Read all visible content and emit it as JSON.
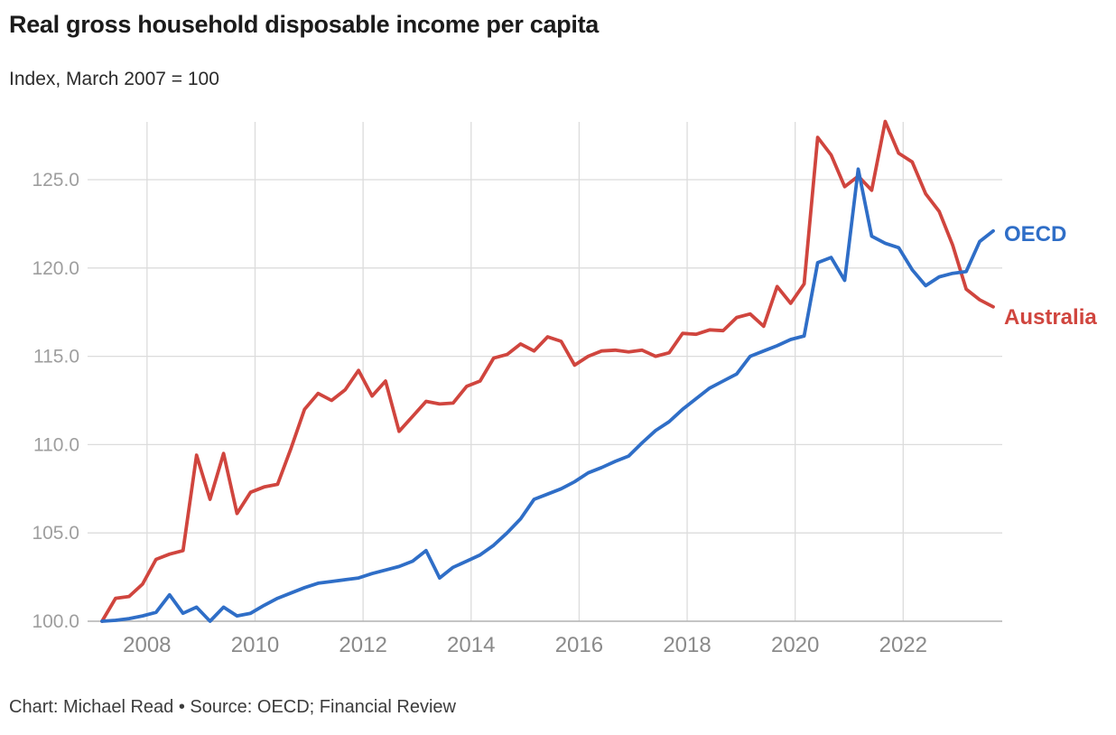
{
  "header": {
    "title": "Real gross household disposable income per capita",
    "subtitle": "Index, March 2007 = 100"
  },
  "footer": {
    "credit": "Chart: Michael Read • Source: OECD; Financial Review"
  },
  "colors": {
    "australia": "#D0453E",
    "oecd": "#2F6EC7",
    "gridline": "#DCDCDC",
    "baseline": "#B2B2B2",
    "y_tick_text": "#9E9E9E",
    "x_tick_text": "#8A8A8A",
    "title_text": "#1B1B1B",
    "credit_text": "#3C3C3C",
    "background": "#FFFFFF"
  },
  "chart_data": {
    "type": "line",
    "title": "Real gross household disposable income per capita",
    "subtitle": "Index, March 2007 = 100",
    "frequency": "quarterly",
    "x_start": "2007-Q1",
    "x_end": "2023-Q3",
    "x_tick_years": [
      2008,
      2010,
      2012,
      2014,
      2016,
      2018,
      2020,
      2022
    ],
    "y_tick_labels": [
      "100.0",
      "105.0",
      "110.0",
      "115.0",
      "120.0",
      "125.0"
    ],
    "ylim": [
      100,
      128.4
    ],
    "grid": true,
    "legend_position": "right-of-line-ends",
    "series": [
      {
        "name": "Australia",
        "label": "Australia",
        "color": "#D0453E",
        "values": [
          100.0,
          101.3,
          101.4,
          102.1,
          103.5,
          103.8,
          104.0,
          109.4,
          106.9,
          109.5,
          106.1,
          107.3,
          107.6,
          107.75,
          109.8,
          112.0,
          112.9,
          112.5,
          113.1,
          114.2,
          112.75,
          113.6,
          110.75,
          111.6,
          112.45,
          112.3,
          112.35,
          113.3,
          113.6,
          114.9,
          115.1,
          115.7,
          115.3,
          116.1,
          115.85,
          114.5,
          115.0,
          115.3,
          115.35,
          115.25,
          115.35,
          115.0,
          115.2,
          116.3,
          116.25,
          116.5,
          116.45,
          117.2,
          117.4,
          116.7,
          118.95,
          118.0,
          119.1,
          127.4,
          126.4,
          124.6,
          125.2,
          124.4,
          128.3,
          126.5,
          126.0,
          124.2,
          123.2,
          121.3,
          118.8,
          118.2,
          117.8
        ]
      },
      {
        "name": "OECD",
        "label": "OECD",
        "color": "#2F6EC7",
        "values": [
          100.0,
          100.05,
          100.15,
          100.3,
          100.5,
          101.5,
          100.45,
          100.8,
          100.0,
          100.8,
          100.3,
          100.45,
          100.9,
          101.3,
          101.6,
          101.9,
          102.15,
          102.25,
          102.35,
          102.45,
          102.7,
          102.9,
          103.1,
          103.4,
          104.0,
          102.45,
          103.05,
          103.4,
          103.75,
          104.3,
          105.0,
          105.8,
          106.9,
          107.2,
          107.5,
          107.9,
          108.4,
          108.7,
          109.05,
          109.35,
          110.1,
          110.8,
          111.3,
          112.0,
          112.6,
          113.2,
          113.6,
          114.0,
          115.0,
          115.3,
          115.6,
          115.95,
          116.15,
          120.3,
          120.6,
          119.3,
          125.6,
          121.8,
          121.4,
          121.15,
          119.9,
          119.0,
          119.5,
          119.7,
          119.8,
          121.5,
          122.1
        ]
      }
    ]
  }
}
